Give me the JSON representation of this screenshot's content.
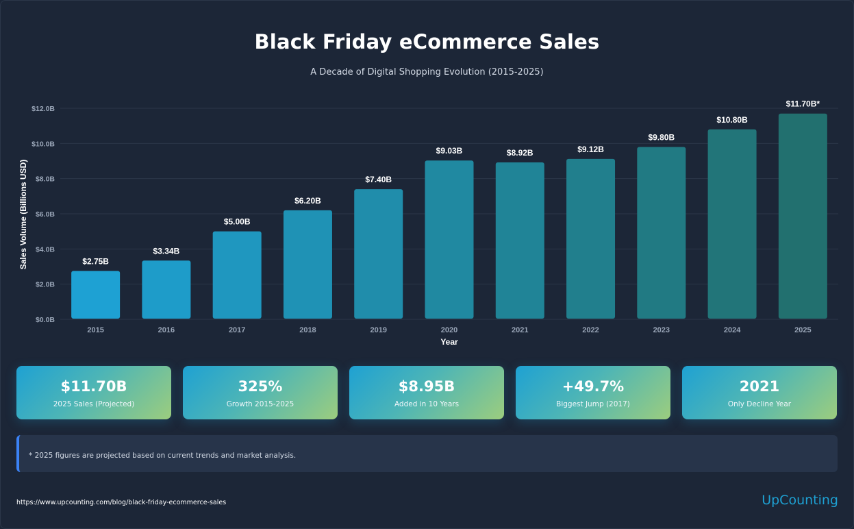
{
  "header": {
    "title": "Black Friday eCommerce Sales",
    "subtitle": "A Decade of Digital Shopping Evolution (2015-2025)"
  },
  "chart_data": {
    "type": "bar",
    "categories": [
      "2015",
      "2016",
      "2017",
      "2018",
      "2019",
      "2020",
      "2021",
      "2022",
      "2023",
      "2024",
      "2025"
    ],
    "values": [
      2.75,
      3.34,
      5.0,
      6.2,
      7.4,
      9.03,
      8.92,
      9.12,
      9.8,
      10.8,
      11.7
    ],
    "data_labels": [
      "$2.75B",
      "$3.34B",
      "$5.00B",
      "$6.20B",
      "$7.40B",
      "$9.03B",
      "$8.92B",
      "$9.12B",
      "$9.80B",
      "$10.80B",
      "$11.70B*"
    ],
    "ylim": [
      0,
      12
    ],
    "yticks": [
      0,
      2,
      4,
      6,
      8,
      10,
      12
    ],
    "ytick_labels": [
      "$0.0B",
      "$2.0B",
      "$4.0B",
      "$6.0B",
      "$8.0B",
      "$10.0B",
      "$12.0B"
    ],
    "xlabel": "Year",
    "ylabel": "Sales Volume (Billions USD)",
    "grid": true,
    "colors": {
      "start": "#1ea1d3",
      "end": "#22706f",
      "grid": "#2b3749",
      "tick": "#9aa6b8"
    }
  },
  "stats": [
    {
      "value": "$11.70B",
      "label": "2025 Sales (Projected)"
    },
    {
      "value": "325%",
      "label": "Growth 2015-2025"
    },
    {
      "value": "$8.95B",
      "label": "Added in 10 Years"
    },
    {
      "value": "+49.7%",
      "label": "Biggest Jump (2017)"
    },
    {
      "value": "2021",
      "label": "Only Decline Year"
    }
  ],
  "note": "* 2025 figures are projected based on current trends and market analysis.",
  "footer": {
    "source": "https://www.upcounting.com/blog/black-friday-ecommerce-sales",
    "brand": "UpCounting"
  }
}
